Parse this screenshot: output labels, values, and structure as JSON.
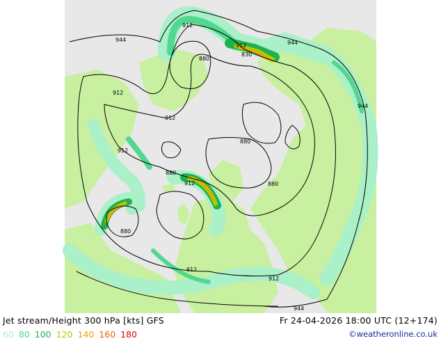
{
  "map": {
    "colors": {
      "ocean": "#e8e8e8",
      "land": "#c8f0a0",
      "jet_60": "#aaf0c8",
      "jet_80": "#50d890",
      "jet_100": "#20b050",
      "jet_120": "#b8c800",
      "jet_140": "#f0a000",
      "contour": "#000000"
    },
    "contour_labels": [
      {
        "id": "944-top-left",
        "text": "944"
      },
      {
        "id": "912-top",
        "text": "912"
      },
      {
        "id": "880-top",
        "text": "880"
      },
      {
        "id": "912-top-right",
        "text": "912"
      },
      {
        "id": "830-top-right",
        "text": "830"
      },
      {
        "id": "944-top-right",
        "text": "944"
      },
      {
        "id": "912-left",
        "text": "912"
      },
      {
        "id": "944-right",
        "text": "944"
      },
      {
        "id": "912-center-left",
        "text": "912"
      },
      {
        "id": "880-center",
        "text": "880"
      },
      {
        "id": "912-left-lower",
        "text": "912"
      },
      {
        "id": "880-center-left",
        "text": "880"
      },
      {
        "id": "912-center",
        "text": "912"
      },
      {
        "id": "880-right",
        "text": "880"
      },
      {
        "id": "880-bottom-left",
        "text": "880"
      },
      {
        "id": "912-bottom",
        "text": "912"
      },
      {
        "id": "912-bottom-right",
        "text": "912"
      },
      {
        "id": "944-bottom",
        "text": "944"
      }
    ]
  },
  "footer": {
    "title_left": "Jet stream/Height 300 hPa [kts] GFS",
    "title_right": "Fr 24-04-2026 18:00 UTC (12+174)",
    "legend": [
      {
        "label": "60",
        "color": "#aaf0c8"
      },
      {
        "label": "80",
        "color": "#50d890"
      },
      {
        "label": "100",
        "color": "#20b050"
      },
      {
        "label": "120",
        "color": "#b8c800"
      },
      {
        "label": "140",
        "color": "#f0a000"
      },
      {
        "label": "160",
        "color": "#f06000"
      },
      {
        "label": "180",
        "color": "#e00000"
      }
    ],
    "credit": "©weatheronline.co.uk"
  }
}
